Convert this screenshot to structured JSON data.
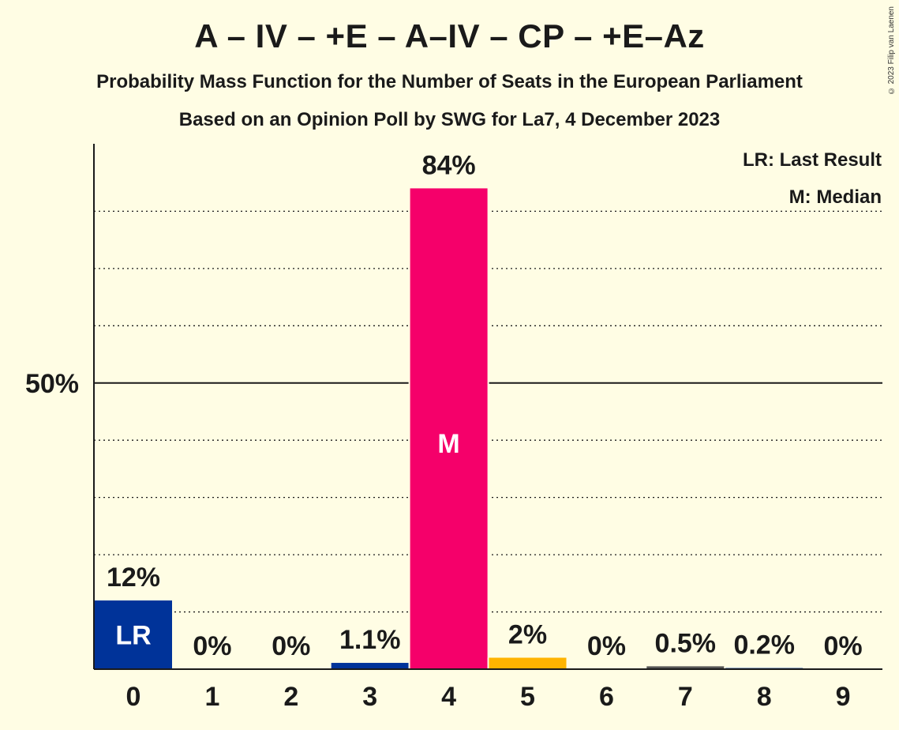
{
  "header": {
    "title": "A – IV – +E – A–IV – CP – +E–Az",
    "subtitle": "Probability Mass Function for the Number of Seats in the European Parliament",
    "subtitle2": "Based on an Opinion Poll by SWG for La7, 4 December 2023",
    "copyright": "© 2023 Filip van Laenen"
  },
  "legend": {
    "last_result": "LR: Last Result",
    "median": "M: Median",
    "placement": "top-right"
  },
  "colors": {
    "background": "#fffde4",
    "default_bar": "#003399",
    "median_bar": "#f5006a",
    "bar_5": "#ffb400",
    "bar_7": "#555555"
  },
  "chart_data": {
    "type": "bar",
    "categories": [
      "0",
      "1",
      "2",
      "3",
      "4",
      "5",
      "6",
      "7",
      "8",
      "9"
    ],
    "values": [
      12,
      0,
      0,
      1.1,
      84,
      2,
      0,
      0.5,
      0.2,
      0
    ],
    "value_labels": [
      "12%",
      "0%",
      "0%",
      "1.1%",
      "84%",
      "2%",
      "0%",
      "0.5%",
      "0.2%",
      "0%"
    ],
    "bar_colors": [
      "#003399",
      "#003399",
      "#003399",
      "#003399",
      "#f5006a",
      "#ffb400",
      "#003399",
      "#555555",
      "#003399",
      "#003399"
    ],
    "bar_marks": {
      "0": "LR",
      "4": "M"
    },
    "ylim": [
      0,
      92
    ],
    "yticks_labeled": [
      {
        "value": 50,
        "label": "50%"
      }
    ],
    "gridlines": [
      10,
      20,
      30,
      40,
      50,
      60,
      70,
      80
    ],
    "xlabel": "",
    "ylabel": ""
  }
}
